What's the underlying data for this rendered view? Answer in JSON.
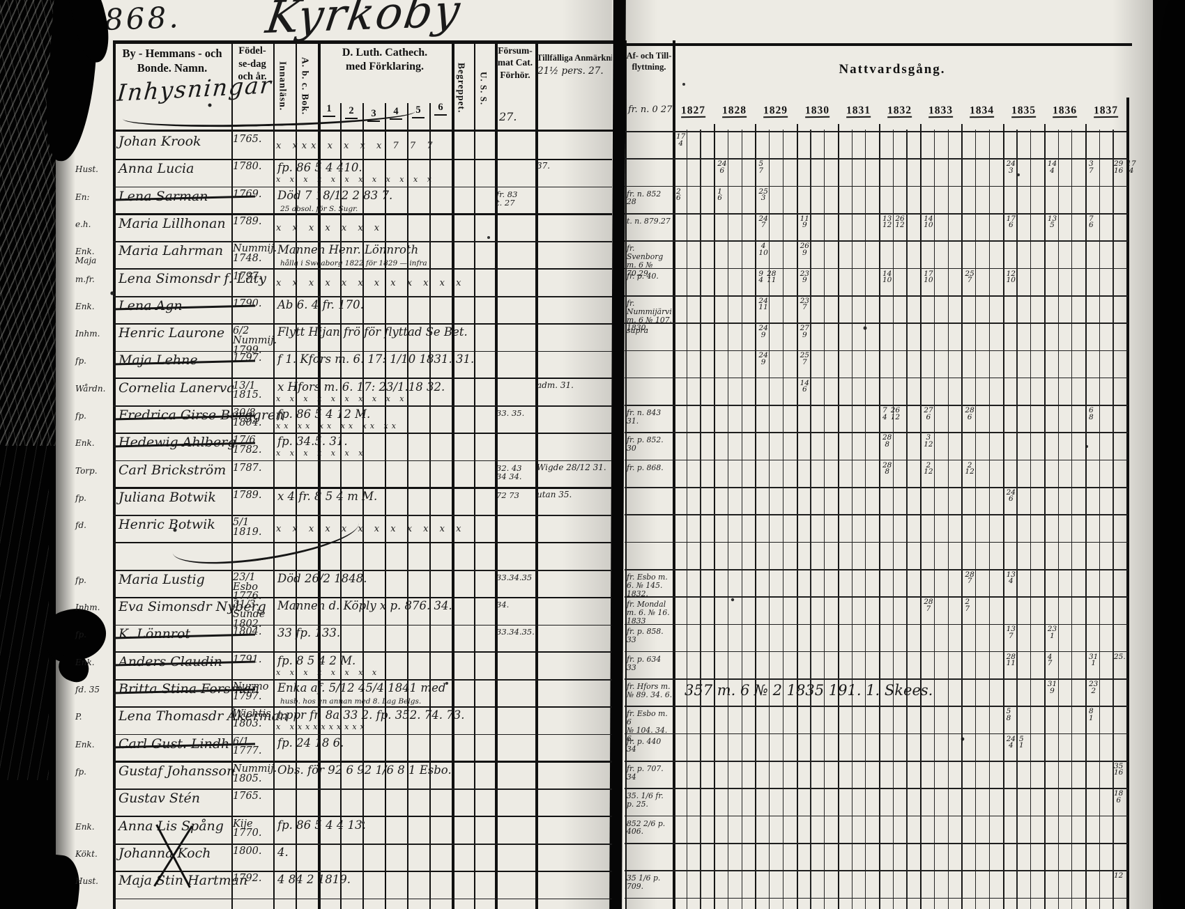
{
  "page": {
    "number": "868.",
    "title": "Kyrkoby"
  },
  "header": {
    "col_name": "By - Hemmans - och\nBonde. Namn.",
    "section_script": "Inhysningar",
    "col_birth": "Födel-\nse-dag\noch år.",
    "col_innan": "Innanläsn.",
    "col_abc": "A. b. c. Bok.",
    "col_cathech": "D. Luth. Cathech.\nmed Förklaring.",
    "cathech_subs": [
      "1",
      "2",
      "3",
      "4",
      "5",
      "6"
    ],
    "col_begrepp": "Begreppet.",
    "col_uss": "U. S. S.",
    "col_forsum": "Försum-\nmat Cat.\nFörhör.",
    "forsum_note": "27.",
    "col_anm": "Tillfälliga Anmärkning",
    "anm_note": "21½ pers. 27.",
    "col_flytt": "Af- och Till-\nflyttning.",
    "flytt_note": "fr. n. 0 27",
    "col_nattvard": "Nattvardsgång.",
    "years": [
      "1827",
      "1828",
      "1829",
      "1830",
      "1831",
      "1832",
      "1833",
      "1834",
      "1835",
      "1836",
      "1837"
    ]
  },
  "rows": [
    {
      "n": "Johan Krook",
      "b": "1765.",
      "mk": "x  xxx x x  x  x  7  7  7",
      "yc": {
        "0": "17/4"
      }
    },
    {
      "m": "Hust.",
      "n": "Anna Lucia",
      "b": "1780.",
      "cs": "fp. 86 5 4 410.",
      "mk": "x x x x x x x x x x x x",
      "an": "37.",
      "yc": {
        "1": "24/6",
        "2": "5/7",
        "8": "24/3",
        "9": "14/4",
        "10": "3/7"
      },
      "rm": "29/16 17/4"
    },
    {
      "m": "En:",
      "n": "Lena Sarman",
      "st": 1,
      "b": "1769.",
      "cs": "Död 7 18/12 2 83 7.",
      "sub": "25 absol. för S. Sugr.",
      "fs": "fr. 83\nt. 27",
      "af": "fr. n. 852 28",
      "yc": {
        "0": "2/6",
        "1": "1/6",
        "2": "25/3"
      }
    },
    {
      "m": "e.h.",
      "n": "Maria Lillhonan",
      "b": "1789.",
      "mk": "x  x  x  x  x  x  x",
      "af": "t. n. 879.27",
      "yc": {
        "2": "24/7",
        "3": "11/9",
        "5": "13/12 26/12",
        "6": "14/10",
        "8": "17/6",
        "9": "13/5",
        "10": "7/6"
      }
    },
    {
      "m": "Enk.\nMaja",
      "n": "Maria Lahrman",
      "b": "Nummij.",
      "b2": "1748.",
      "cs": "Mannen Henr. Lönnroth",
      "sub": "hålla i Sweaborg 1822 för 1829  —  infra",
      "af": "fr. Svenborg\nm. 6 № 70.29.",
      "yc": {
        "2": "4/10",
        "3": "26/9"
      }
    },
    {
      "m": "m.fr.",
      "n": "Lena Simonsdr f. Läty",
      "b": "1797.",
      "mk": "x  x x x x x x x x x x x",
      "af": "fr. p. 40.",
      "yc": {
        "2": "9/4 28/11",
        "3": "23/9",
        "5": "14/10",
        "6": "17/10",
        "7": "25/7",
        "8": "12/10"
      }
    },
    {
      "m": "Enk.",
      "n": "Lena Agn",
      "st": 1,
      "b": "1790.",
      "cs": "Ab 6. 4 fr. 170.",
      "af": "fr. Nummijärvi\nm. 6 № 107. 1830.",
      "yc": {
        "2": "24/11",
        "3": "23/7"
      }
    },
    {
      "m": "Inhm.",
      "n": "Henric Laurone",
      "b": "6/2 Nummij.",
      "b2": "1799.",
      "cs": "Flytt Hijan frö för flyttad Se Bet.",
      "af": "supra",
      "yc": {
        "2": "24/9",
        "3": "27/9"
      }
    },
    {
      "m": "fp.",
      "n": "Maja Lehne",
      "st": 1,
      "b": "1797.",
      "cs": "f 1. Kfors m. 6. 17: 1/10 1831. 31.",
      "yc": {
        "2": "24/9",
        "3": "25/7"
      }
    },
    {
      "m": "Wårdn.",
      "n": "Cornelia Lanerva",
      "b": "13/1",
      "b2": "1815.",
      "cs": "x Hfors m. 6. 17: 23/1.18 32.",
      "mk": "x x x x x x x x x x",
      "an": "adm. 31.",
      "yc": {
        "3": "14/6"
      }
    },
    {
      "m": "fp.",
      "n": "Fredrica Girse Berggren",
      "st": 1,
      "b": "30/8",
      "b2": "1804.",
      "cs": "fp. 86 5 4 12 M.",
      "mk": "xx xx xx xx xx xx",
      "fs": "33. 35.",
      "af": "fr. n. 843 31.",
      "yc": {
        "5": "7/4 26/12",
        "6": "27/6",
        "7": "28/6",
        "10": "6/8"
      }
    },
    {
      "m": "Enk.",
      "n": "Hedewig Ahlberg",
      "st": 1,
      "b": "17/6",
      "b2": "1782.",
      "cs": "fp. 34.5. 31.",
      "mk": "x x x x x x x",
      "af": "fr. p. 852. 30",
      "yc": {
        "5": "28/8",
        "6": "3/12"
      }
    },
    {
      "m": "Torp.",
      "n": "Carl Brickström",
      "b": "1787.",
      "fs": "32. 43\n34 34.",
      "an": "Wigde 28/12 31.",
      "af": "fr. p. 868.",
      "yc": {
        "5": "28/8",
        "6": "2/12",
        "7": "2/12"
      }
    },
    {
      "m": "fp.",
      "n": "Juliana Botwik",
      "b": "1789.",
      "cs": "x  4 fr. 8 5 4 m M.",
      "fs": "72 73",
      "an": "utan 35.",
      "yc": {
        "8": "24/6"
      }
    },
    {
      "m": "fd.",
      "n": "Henric Botwik",
      "b": "5/1",
      "b2": "1819.",
      "mk": "x  x x x x x x x x x x x"
    },
    {},
    {
      "m": "fp.",
      "n": "Maria Lustig",
      "b": "23/1 Esbo",
      "b2": "1776.",
      "cs": "Död 26/2 1848.",
      "fs": "33.34.35",
      "af": "fr. Esbo m. 6. № 145. 1832.",
      "yc": {
        "7": "28/7",
        "8": "13/4"
      }
    },
    {
      "m": "Inhm.",
      "n": "Eva Simonsdr Nyberg",
      "b": "31/3 Sunde",
      "b2": "1802.",
      "cs": "Mannen d. Köply  x p. 876. 34.",
      "fs": "34.",
      "af": "fr. Mondal\nm. 6. № 16. 1833",
      "yc": {
        "6": "28/7",
        "7": "2/7"
      }
    },
    {
      "m": "fp.",
      "n": "K. Lönnrot",
      "st": 1,
      "b": "1804.",
      "cs": "33  fp. 133.",
      "fs": "33.34.35.",
      "af": "fr. p. 858.\n33",
      "yc": {
        "8": "13/7",
        "9": "23/1"
      }
    },
    {
      "m": "Enk.",
      "n": "Anders Claudin",
      "st": 1,
      "b": "1791.",
      "cs": "fp. 8 5 4 2 M.",
      "mk": "x x x x x x x x",
      "af": "fr. p. 634\n33",
      "yc": {
        "8": "28/11",
        "9": "4/7",
        "10": "31/1"
      },
      "rm": "25."
    },
    {
      "m": "fd. 35",
      "n": "Britta Stina Forsman",
      "st": 1,
      "b": "Nurmo",
      "b2": "1797.",
      "cs": "Enka  af. 5/12 45/4 1841 med",
      "sub": "husb. hos en annan med 8. Lag Belgs.",
      "af": "fr. Hfors m.\n№ 89. 34.  6.",
      "sp": "357 m. 6 № 2 1835  191. 1. Skees.",
      "yc": {
        "9": "31/9",
        "10": "23/2"
      }
    },
    {
      "m": "P.",
      "n": "Lena Thomasdr Åkerman",
      "b": "Wichtis",
      "b2": "1803.",
      "cs": "t.ppr  fr. 8a 33 2. fp. 352. 74. 73.",
      "mk": "x xxxxxxxxxx",
      "af": "fr. Esbo m. 6\n№ 104. 34.  6.",
      "yc": {
        "8": "5/8",
        "10": "8/1"
      }
    },
    {
      "m": "Enk.",
      "n": "Carl Gust. Lindh",
      "st": 1,
      "b": "6/1",
      "b2": "1777.",
      "cs": "fp. 24 18 6.",
      "af": "fr. p. 440\n34",
      "yc": {
        "8": "24/4 5/1"
      }
    },
    {
      "m": "fp.",
      "n": "Gustaf Johansson",
      "b": "Nummij.",
      "b2": "1805.",
      "cs": "Obs. för 92 6 92 1/6 8 1 Esbo.",
      "af": "fr. p. 707.\n34",
      "rm": "35/16"
    },
    {
      "n": "Gustav Stén",
      "b": "1765.",
      "af": "35. 1/6 fr. p. 25.",
      "rm": "18/6"
    },
    {
      "m": "Enk.",
      "n": "Anna Lis Spång",
      "b": "Kije",
      "b2": "1770.",
      "cs": "fp. 86 5 4 4 13.",
      "af": "852 2/6 p. 406."
    },
    {
      "m": "Kökt.",
      "n": "Johanna Koch",
      "xx": 1,
      "b": "1800.",
      "cs": "4."
    },
    {
      "m": "Hust.",
      "n": "Maja Stin Hartman",
      "b": "1792.",
      "cs": "4 84 2  1819.",
      "af": "35 1/6 p. 709.",
      "rm": "12"
    }
  ]
}
